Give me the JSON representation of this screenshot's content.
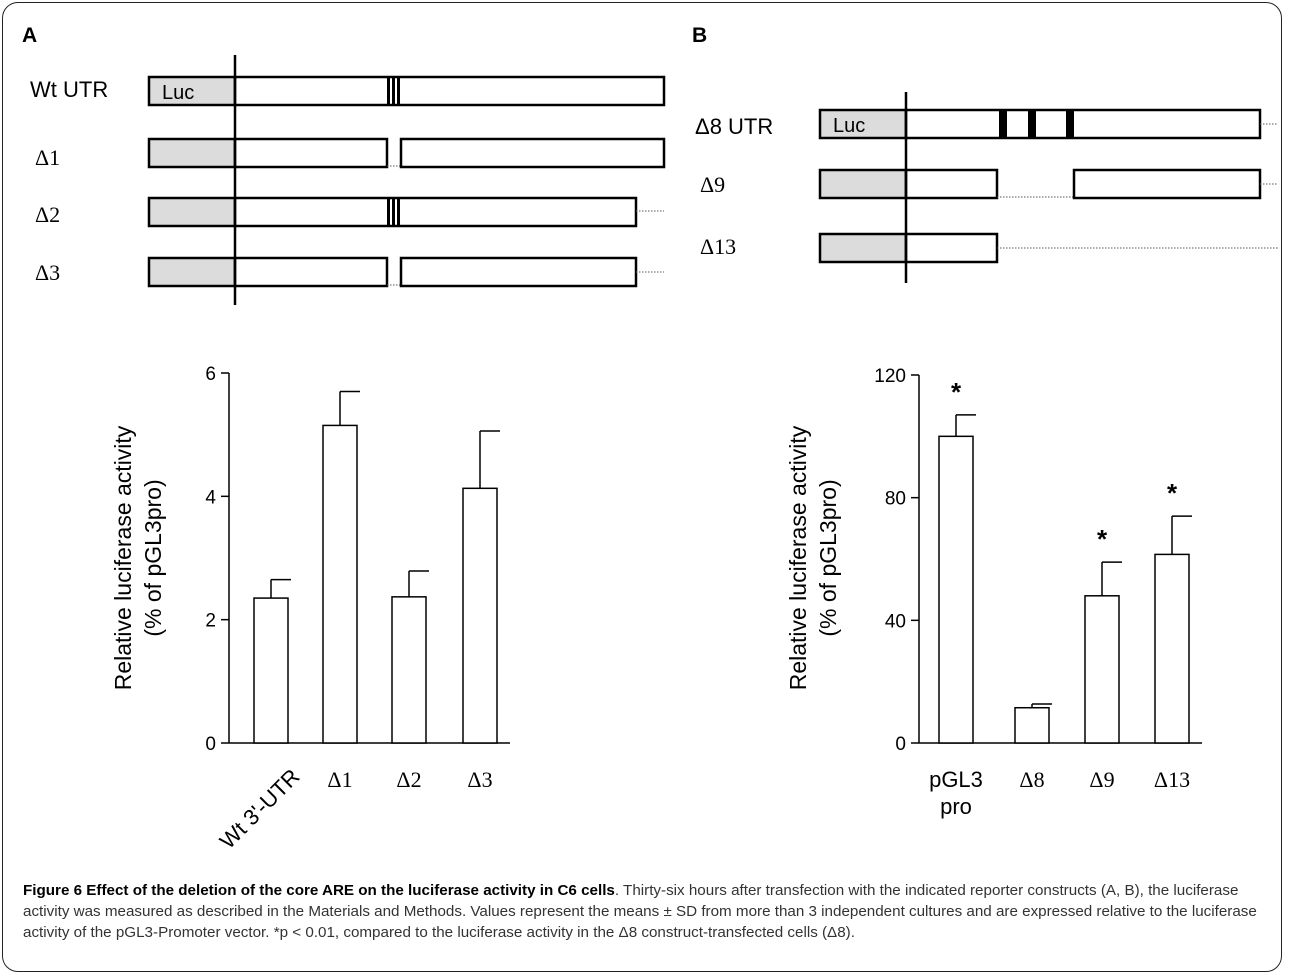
{
  "panels": {
    "a": {
      "letter": "A",
      "labels": [
        "Wt UTR",
        "Δ1",
        "Δ2",
        "Δ3"
      ],
      "luc": "Luc"
    },
    "b": {
      "letter": "B",
      "labels": [
        "Δ8 UTR",
        "Δ9",
        "Δ13"
      ],
      "luc": "Luc"
    }
  },
  "chart_data": [
    {
      "type": "bar",
      "ylabel_line1": "Relative luciferase activity",
      "ylabel_line2": "(% of pGL3pro)",
      "ylim": [
        0,
        6
      ],
      "yticks": [
        "0",
        "2",
        "4",
        "6"
      ],
      "categories": [
        "Wt 3'-UTR",
        "Δ1",
        "Δ2",
        "Δ3"
      ],
      "values": [
        2.35,
        5.15,
        2.37,
        4.13
      ],
      "errors": [
        0.3,
        0.55,
        0.42,
        0.93
      ]
    },
    {
      "type": "bar",
      "ylabel_line1": "Relative luciferase activity",
      "ylabel_line2": "(% of pGL3pro)",
      "ylim": [
        0,
        120
      ],
      "yticks": [
        "0",
        "40",
        "80",
        "120"
      ],
      "categories": [
        "pGL3 pro",
        "Δ8",
        "Δ9",
        "Δ13"
      ],
      "category_lines": [
        [
          "pGL3",
          "pro"
        ],
        [
          "Δ8"
        ],
        [
          "Δ9"
        ],
        [
          "Δ13"
        ]
      ],
      "values": [
        100,
        11.5,
        48,
        61.5
      ],
      "errors": [
        7,
        1.2,
        11,
        12.5
      ],
      "significance_marker": "*",
      "significant": [
        true,
        false,
        true,
        true
      ]
    }
  ],
  "caption": {
    "title": "Figure 6 Effect of the deletion of the core ARE on the luciferase activity in C6 cells",
    "text": ". Thirty-six hours after transfection with the indicated reporter constructs (A, B), the luciferase activity was measured as described in the Materials and Methods. Values represent the means ± SD from more than 3 independent cultures and are expressed relative to the luciferase activity of the pGL3-Promoter vector. *p < 0.01, compared to the luciferase activity in the Δ8 construct-transfected cells (Δ8)."
  }
}
